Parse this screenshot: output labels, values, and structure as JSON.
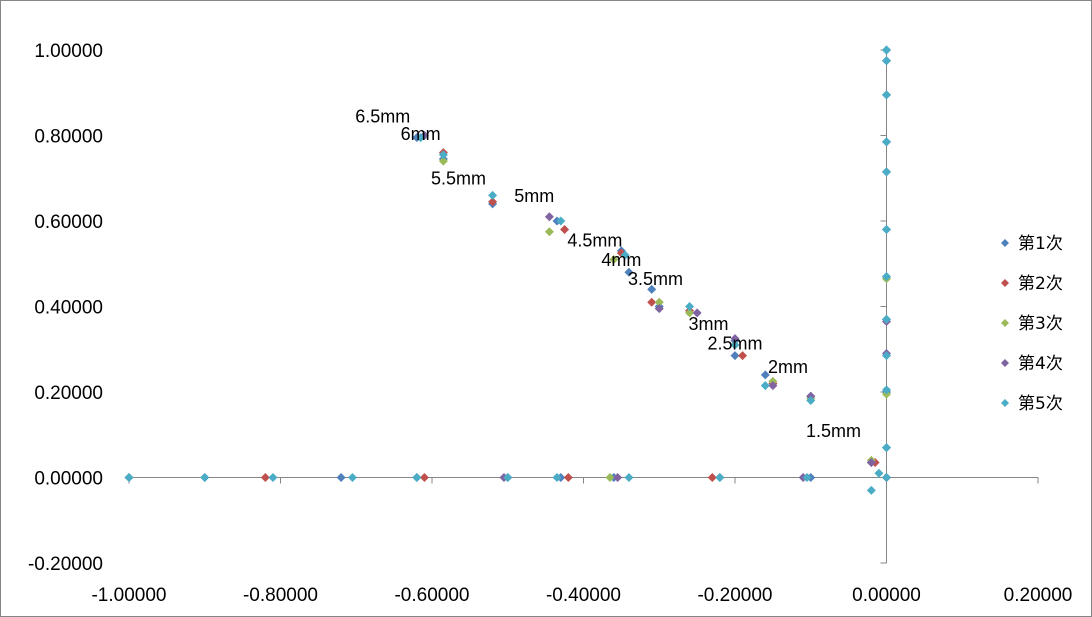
{
  "chart_data": {
    "type": "scatter",
    "xlim": [
      -1.0,
      0.2
    ],
    "ylim": [
      -0.2,
      1.0
    ],
    "x_ticks": [
      -1.0,
      -0.8,
      -0.6,
      -0.4,
      -0.2,
      0.0,
      0.2
    ],
    "y_ticks": [
      -0.2,
      0.0,
      0.2,
      0.4,
      0.6,
      0.8,
      1.0
    ],
    "x_tick_labels": [
      "-1.00000",
      "-0.80000",
      "-0.60000",
      "-0.40000",
      "-0.20000",
      "0.00000",
      "0.20000"
    ],
    "y_tick_labels": [
      "-0.20000",
      "0.00000",
      "0.20000",
      "0.40000",
      "0.60000",
      "0.80000",
      "1.00000"
    ],
    "grid": false,
    "legend_position": "right",
    "marker": "diamond",
    "series": [
      {
        "name": "第1次",
        "color": "#4F81BD",
        "points": [
          [
            -1.0,
            0
          ],
          [
            -0.9,
            0
          ],
          [
            -0.72,
            0
          ],
          [
            -0.62,
            0
          ],
          [
            -0.5,
            0
          ],
          [
            -0.43,
            0
          ],
          [
            -0.36,
            0
          ],
          [
            -0.22,
            0
          ],
          [
            -0.1,
            0
          ],
          [
            0,
            0
          ],
          [
            -0.62,
            0.795
          ],
          [
            -0.585,
            0.745
          ],
          [
            -0.52,
            0.64
          ],
          [
            -0.435,
            0.6
          ],
          [
            -0.35,
            0.53
          ],
          [
            -0.34,
            0.48
          ],
          [
            -0.31,
            0.44
          ],
          [
            -0.3,
            0.4
          ],
          [
            -0.2,
            0.32
          ],
          [
            -0.2,
            0.285
          ],
          [
            -0.16,
            0.24
          ],
          [
            -0.1,
            0.19
          ],
          [
            -0.02,
            0.035
          ],
          [
            0,
            0.07
          ],
          [
            0,
            0.2
          ],
          [
            0,
            0.37
          ],
          [
            0,
            0.47
          ],
          [
            0,
            0.58
          ],
          [
            0,
            0.715
          ],
          [
            0,
            0.785
          ],
          [
            0,
            0.895
          ],
          [
            0,
            0.975
          ],
          [
            0,
            1.0
          ]
        ]
      },
      {
        "name": "第2次",
        "color": "#C0504D",
        "points": [
          [
            -0.82,
            0
          ],
          [
            -0.61,
            0
          ],
          [
            -0.42,
            0
          ],
          [
            -0.23,
            0
          ],
          [
            0,
            0
          ],
          [
            -0.585,
            0.76
          ],
          [
            -0.52,
            0.645
          ],
          [
            -0.425,
            0.58
          ],
          [
            -0.35,
            0.525
          ],
          [
            -0.31,
            0.41
          ],
          [
            -0.26,
            0.39
          ],
          [
            -0.19,
            0.285
          ],
          [
            -0.15,
            0.22
          ],
          [
            -0.015,
            0.035
          ]
        ]
      },
      {
        "name": "第3次",
        "color": "#9BBB59",
        "points": [
          [
            -0.365,
            0
          ],
          [
            0,
            0
          ],
          [
            -0.585,
            0.74
          ],
          [
            -0.445,
            0.575
          ],
          [
            -0.36,
            0.51
          ],
          [
            -0.3,
            0.41
          ],
          [
            -0.26,
            0.385
          ],
          [
            -0.15,
            0.225
          ],
          [
            -0.1,
            0.185
          ],
          [
            -0.02,
            0.04
          ],
          [
            0,
            0.195
          ],
          [
            0,
            0.465
          ]
        ]
      },
      {
        "name": "第4次",
        "color": "#8064A2",
        "points": [
          [
            -0.505,
            0
          ],
          [
            -0.355,
            0
          ],
          [
            -0.11,
            0
          ],
          [
            0,
            0
          ],
          [
            -0.61,
            0.8
          ],
          [
            -0.445,
            0.61
          ],
          [
            -0.3,
            0.395
          ],
          [
            -0.25,
            0.385
          ],
          [
            -0.2,
            0.325
          ],
          [
            -0.15,
            0.215
          ],
          [
            -0.1,
            0.19
          ],
          [
            -0.02,
            0.035
          ],
          [
            0,
            0.29
          ],
          [
            0,
            0.365
          ]
        ]
      },
      {
        "name": "第5次",
        "color": "#4BACC6",
        "points": [
          [
            -1.0,
            0
          ],
          [
            -0.9,
            0
          ],
          [
            -0.81,
            0
          ],
          [
            -0.705,
            0
          ],
          [
            -0.62,
            0
          ],
          [
            -0.5,
            0
          ],
          [
            -0.435,
            0
          ],
          [
            -0.34,
            0
          ],
          [
            -0.22,
            0
          ],
          [
            -0.105,
            0
          ],
          [
            0,
            0
          ],
          [
            -0.615,
            0.795
          ],
          [
            -0.585,
            0.755
          ],
          [
            -0.52,
            0.66
          ],
          [
            -0.43,
            0.6
          ],
          [
            -0.345,
            0.52
          ],
          [
            -0.26,
            0.4
          ],
          [
            -0.2,
            0.31
          ],
          [
            -0.16,
            0.215
          ],
          [
            -0.1,
            0.18
          ],
          [
            -0.01,
            0.01
          ],
          [
            -0.02,
            -0.03
          ],
          [
            0,
            0.07
          ],
          [
            0,
            0.205
          ],
          [
            0,
            0.285
          ],
          [
            0,
            0.37
          ],
          [
            0,
            0.47
          ],
          [
            0,
            0.58
          ],
          [
            0,
            0.715
          ],
          [
            0,
            0.785
          ],
          [
            0,
            0.895
          ],
          [
            0,
            0.975
          ],
          [
            0,
            1.0
          ]
        ]
      }
    ],
    "annotations": [
      {
        "text": "6.5mm",
        "x": -0.665,
        "y": 0.83
      },
      {
        "text": "6mm",
        "x": -0.615,
        "y": 0.79
      },
      {
        "text": "5.5mm",
        "x": -0.565,
        "y": 0.685
      },
      {
        "text": "5mm",
        "x": -0.465,
        "y": 0.645
      },
      {
        "text": "4.5mm",
        "x": -0.385,
        "y": 0.54
      },
      {
        "text": "4mm",
        "x": -0.35,
        "y": 0.495
      },
      {
        "text": "3.5mm",
        "x": -0.305,
        "y": 0.45
      },
      {
        "text": "3mm",
        "x": -0.235,
        "y": 0.345
      },
      {
        "text": "2.5mm",
        "x": -0.2,
        "y": 0.3
      },
      {
        "text": "2mm",
        "x": -0.13,
        "y": 0.245
      },
      {
        "text": "1.5mm",
        "x": -0.07,
        "y": 0.095
      }
    ]
  }
}
